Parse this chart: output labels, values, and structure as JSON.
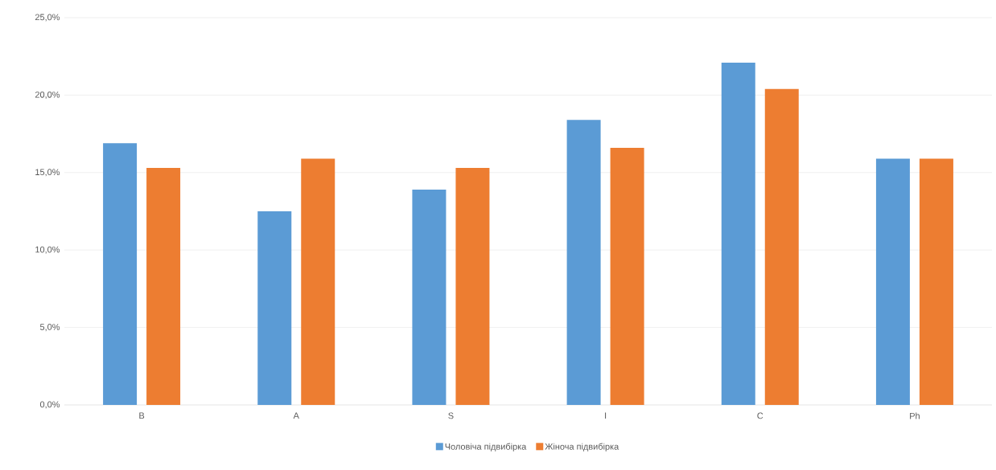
{
  "chart_data": {
    "type": "bar",
    "categories": [
      "B",
      "A",
      "S",
      "I",
      "C",
      "Ph"
    ],
    "series": [
      {
        "name": "Чоловіча підвибірка",
        "color": "#5b9bd5",
        "values": [
          16.9,
          12.5,
          13.9,
          18.4,
          22.1,
          15.9
        ]
      },
      {
        "name": "Жіноча підвибірка",
        "color": "#ed7d31",
        "values": [
          15.3,
          15.9,
          15.3,
          16.6,
          20.4,
          15.9
        ]
      }
    ],
    "ylim": [
      0,
      25
    ],
    "yticks": [
      {
        "value": 0,
        "label": "0,0%"
      },
      {
        "value": 5,
        "label": "5,0%"
      },
      {
        "value": 10,
        "label": "10,0%"
      },
      {
        "value": 15,
        "label": "15,0%"
      },
      {
        "value": 20,
        "label": "20,0%"
      },
      {
        "value": 25,
        "label": "25,0%"
      }
    ],
    "grid": "y",
    "legend": "bottom"
  }
}
